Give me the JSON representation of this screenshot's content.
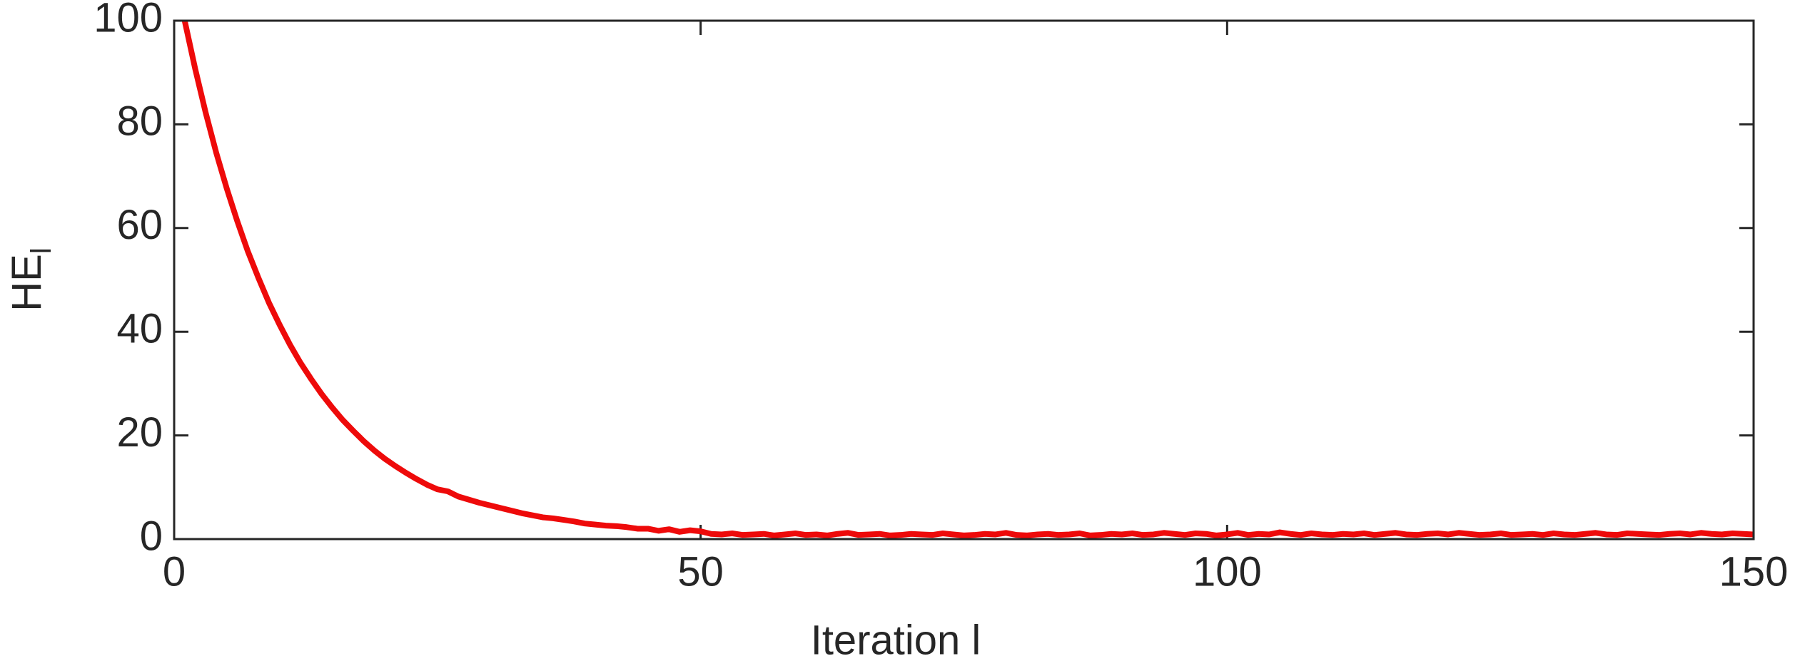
{
  "chart_data": {
    "type": "line",
    "xlabel": "Iteration l",
    "ylabel": "HE",
    "ylabel_subscript": "l",
    "color": "#ee0a0a",
    "xlim": [
      0,
      150
    ],
    "xticks": [
      0,
      50,
      100,
      150
    ],
    "ylim": [
      0,
      100
    ],
    "yticks": [
      0,
      20,
      40,
      60,
      80,
      100
    ],
    "grid": false,
    "x": [
      1,
      2,
      3,
      4,
      5,
      6,
      7,
      8,
      9,
      10,
      11,
      12,
      13,
      14,
      15,
      16,
      17,
      18,
      19,
      20,
      21,
      22,
      23,
      24,
      25,
      26,
      27,
      28,
      29,
      30,
      31,
      32,
      33,
      34,
      35,
      36,
      37,
      38,
      39,
      40,
      41,
      42,
      43,
      44,
      45,
      46,
      47,
      48,
      49,
      50,
      51,
      52,
      53,
      54,
      55,
      56,
      57,
      58,
      59,
      60,
      61,
      62,
      63,
      64,
      65,
      66,
      67,
      68,
      69,
      70,
      71,
      72,
      73,
      74,
      75,
      76,
      77,
      78,
      79,
      80,
      81,
      82,
      83,
      84,
      85,
      86,
      87,
      88,
      89,
      90,
      91,
      92,
      93,
      94,
      95,
      96,
      97,
      98,
      99,
      100,
      101,
      102,
      103,
      104,
      105,
      106,
      107,
      108,
      109,
      110,
      111,
      112,
      113,
      114,
      115,
      116,
      117,
      118,
      119,
      120,
      121,
      122,
      123,
      124,
      125,
      126,
      127,
      128,
      129,
      130,
      131,
      132,
      133,
      134,
      135,
      136,
      137,
      138,
      139,
      140,
      141,
      142,
      143,
      144,
      145,
      146,
      147,
      148,
      149,
      150
    ],
    "values": [
      100,
      90.7,
      82.2,
      74.5,
      67.6,
      61.3,
      55.5,
      50.4,
      45.6,
      41.4,
      37.5,
      34.0,
      30.9,
      28.0,
      25.4,
      23.0,
      20.9,
      18.9,
      17.1,
      15.5,
      14.1,
      12.8,
      11.6,
      10.5,
      9.6,
      9.2,
      8.2,
      7.6,
      7.0,
      6.5,
      6.0,
      5.5,
      5.0,
      4.6,
      4.2,
      4.0,
      3.7,
      3.4,
      3.0,
      2.8,
      2.6,
      2.5,
      2.3,
      2.0,
      2.0,
      1.6,
      1.9,
      1.4,
      1.7,
      1.5,
      1.0,
      0.9,
      1.1,
      0.8,
      0.9,
      1.0,
      0.7,
      0.9,
      1.1,
      0.8,
      0.9,
      0.7,
      1.0,
      1.2,
      0.8,
      0.9,
      1.0,
      0.7,
      0.8,
      1.0,
      0.9,
      0.8,
      1.1,
      0.9,
      0.7,
      0.8,
      1.0,
      0.9,
      1.2,
      0.8,
      0.7,
      0.9,
      1.0,
      0.8,
      0.9,
      1.1,
      0.7,
      0.8,
      1.0,
      0.9,
      1.1,
      0.8,
      0.9,
      1.2,
      1.0,
      0.8,
      1.1,
      1.0,
      0.7,
      0.9,
      1.2,
      0.8,
      1.0,
      0.9,
      1.3,
      1.0,
      0.8,
      1.1,
      0.9,
      0.8,
      1.0,
      0.9,
      1.1,
      0.8,
      1.0,
      1.2,
      0.9,
      0.8,
      1.0,
      1.1,
      0.9,
      1.2,
      1.0,
      0.8,
      0.9,
      1.1,
      0.8,
      0.9,
      1.0,
      0.8,
      1.1,
      0.9,
      0.8,
      1.0,
      1.2,
      0.9,
      0.8,
      1.1,
      1.0,
      0.9,
      0.8,
      1.0,
      1.1,
      0.9,
      1.2,
      1.0,
      0.9,
      1.1,
      1.0,
      0.9
    ]
  }
}
